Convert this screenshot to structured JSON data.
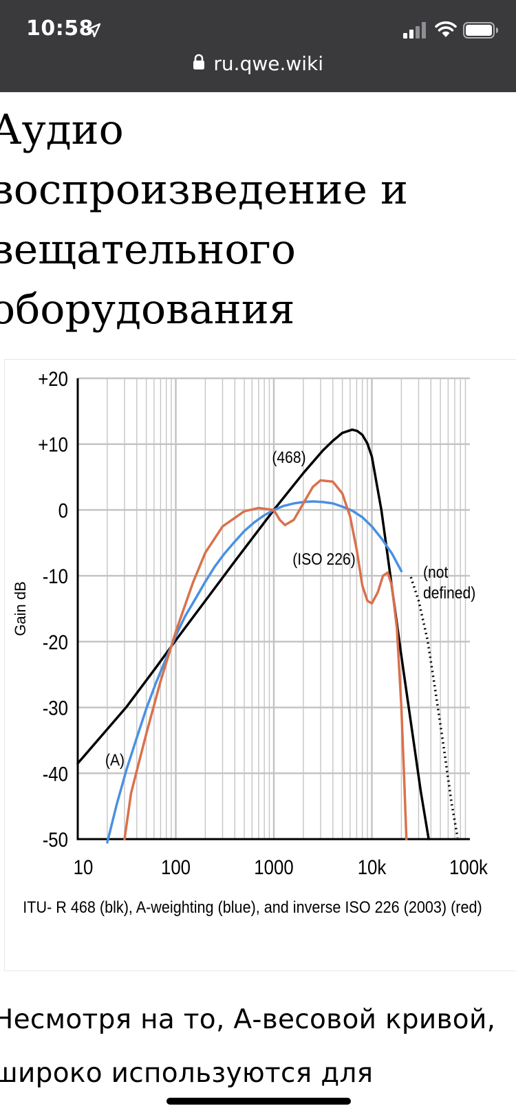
{
  "status_bar": {
    "time": "10:58",
    "icons": [
      "location-arrow-icon",
      "cellular-signal-icon",
      "wifi-icon",
      "battery-icon"
    ],
    "background": "#3a3a3c"
  },
  "browser": {
    "url": "ru.qwe.wiki",
    "icon": "lock-icon"
  },
  "article": {
    "title": "Аудио воспроизведение и вещательного оборудования",
    "paragraph": "Несмотря на то, А-весовой кривой, широко используются для"
  },
  "chart_data": {
    "type": "line",
    "x_scale": "log",
    "xlim": [
      10,
      100000
    ],
    "ylim": [
      -50,
      20
    ],
    "ylabel": "Gain dB",
    "xticks": [
      "10",
      "100",
      "1000",
      "10k",
      "100k"
    ],
    "yticks": [
      "+20",
      "+10",
      "0",
      "-10",
      "-20",
      "-30",
      "-40",
      "-50"
    ],
    "grid": true,
    "caption": "ITU- R 468 (blk), A-weighting (blue), and inverse ISO 226 (2003) (red)",
    "series": [
      {
        "label": "(468)",
        "color": "#000000",
        "points": [
          [
            10,
            -38.5
          ],
          [
            31.5,
            -29.9
          ],
          [
            63,
            -23.9
          ],
          [
            100,
            -19.8
          ],
          [
            200,
            -13.8
          ],
          [
            400,
            -7.8
          ],
          [
            800,
            -1.9
          ],
          [
            1000,
            0
          ],
          [
            2000,
            5.6
          ],
          [
            3150,
            9.0
          ],
          [
            4000,
            10.5
          ],
          [
            5000,
            11.7
          ],
          [
            6300,
            12.2
          ],
          [
            7100,
            12.0
          ],
          [
            8000,
            11.4
          ],
          [
            9000,
            10.1
          ],
          [
            10000,
            8.1
          ],
          [
            12500,
            0
          ],
          [
            14000,
            -5.3
          ],
          [
            16000,
            -11.7
          ],
          [
            20000,
            -22.2
          ],
          [
            31500,
            -42.7
          ],
          [
            38000,
            -50
          ]
        ]
      },
      {
        "label": "(A)",
        "color": "#4a90e2",
        "points": [
          [
            20,
            -50.5
          ],
          [
            25,
            -44.7
          ],
          [
            31.5,
            -39.4
          ],
          [
            40,
            -34.6
          ],
          [
            50,
            -30.2
          ],
          [
            63,
            -26.2
          ],
          [
            80,
            -22.5
          ],
          [
            100,
            -19.1
          ],
          [
            125,
            -16.1
          ],
          [
            160,
            -13.4
          ],
          [
            200,
            -10.9
          ],
          [
            250,
            -8.6
          ],
          [
            315,
            -6.6
          ],
          [
            400,
            -4.8
          ],
          [
            500,
            -3.2
          ],
          [
            630,
            -1.9
          ],
          [
            800,
            -0.8
          ],
          [
            1000,
            0
          ],
          [
            1250,
            0.6
          ],
          [
            1600,
            1.0
          ],
          [
            2000,
            1.2
          ],
          [
            2500,
            1.3
          ],
          [
            3150,
            1.2
          ],
          [
            4000,
            1.0
          ],
          [
            5000,
            0.5
          ],
          [
            6300,
            -0.1
          ],
          [
            8000,
            -1.1
          ],
          [
            10000,
            -2.5
          ],
          [
            12500,
            -4.3
          ],
          [
            16000,
            -6.6
          ],
          [
            20000,
            -9.3
          ]
        ]
      },
      {
        "label": "(ISO 226)",
        "color": "#d9714c",
        "points": [
          [
            30,
            -50
          ],
          [
            35,
            -43
          ],
          [
            50,
            -34
          ],
          [
            70,
            -26
          ],
          [
            100,
            -18.5
          ],
          [
            150,
            -11
          ],
          [
            200,
            -6.5
          ],
          [
            300,
            -2.5
          ],
          [
            500,
            -0.2
          ],
          [
            700,
            0.3
          ],
          [
            1000,
            0
          ],
          [
            1150,
            -1.5
          ],
          [
            1300,
            -2.3
          ],
          [
            1600,
            -1.5
          ],
          [
            2000,
            1.0
          ],
          [
            2500,
            3.5
          ],
          [
            3000,
            4.5
          ],
          [
            4000,
            4.3
          ],
          [
            5000,
            2.5
          ],
          [
            6000,
            -1.0
          ],
          [
            7000,
            -6.0
          ],
          [
            8000,
            -11.5
          ],
          [
            9000,
            -13.8
          ],
          [
            10000,
            -14.2
          ],
          [
            11500,
            -12.5
          ],
          [
            13000,
            -10.0
          ],
          [
            14500,
            -9.5
          ],
          [
            16000,
            -11.5
          ],
          [
            18000,
            -18.0
          ],
          [
            20000,
            -30.0
          ],
          [
            21500,
            -42.0
          ],
          [
            22500,
            -50.0
          ]
        ]
      },
      {
        "label": "(not defined)",
        "color": "#000000",
        "style": "dotted",
        "points": [
          [
            25000,
            -10.2
          ],
          [
            30000,
            -13.8
          ],
          [
            37000,
            -19.8
          ],
          [
            45000,
            -28.0
          ],
          [
            55000,
            -36.8
          ],
          [
            65000,
            -44.5
          ],
          [
            75000,
            -49.8
          ]
        ]
      }
    ]
  }
}
